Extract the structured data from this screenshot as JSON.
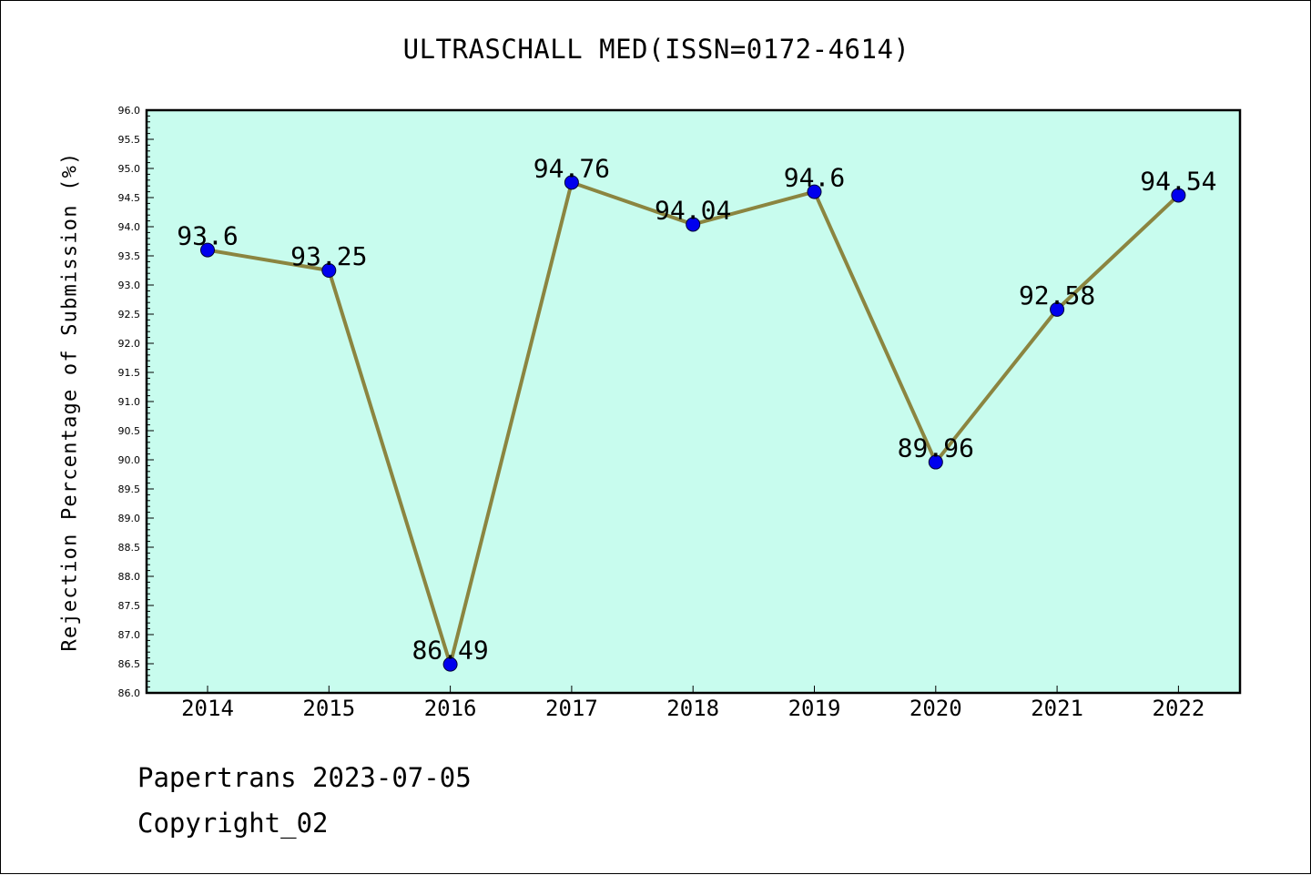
{
  "title": "ULTRASCHALL MED(ISSN=0172-4614)",
  "footer": {
    "line1": "Papertrans 2023-07-05",
    "line2": "Copyright_02"
  },
  "chart_data": {
    "type": "line",
    "title": "ULTRASCHALL MED(ISSN=0172-4614)",
    "xlabel": "",
    "ylabel": "Rejection Percentage of Submission (%)",
    "categories": [
      "2014",
      "2015",
      "2016",
      "2017",
      "2018",
      "2019",
      "2020",
      "2021",
      "2022"
    ],
    "values": [
      93.6,
      93.25,
      86.49,
      94.76,
      94.04,
      94.6,
      89.96,
      92.58,
      94.54
    ],
    "data_labels": [
      "93.6",
      "93.25",
      "86.49",
      "94.76",
      "94.04",
      "94.6",
      "89.96",
      "92.58",
      "94.54"
    ],
    "ylim": [
      86.0,
      96.0
    ],
    "ytick_step": 0.5,
    "yminor_step": 0.1,
    "grid": false,
    "colors": {
      "background": "#c8fcee",
      "line": "#8b8540",
      "marker": "#0000ee"
    }
  }
}
